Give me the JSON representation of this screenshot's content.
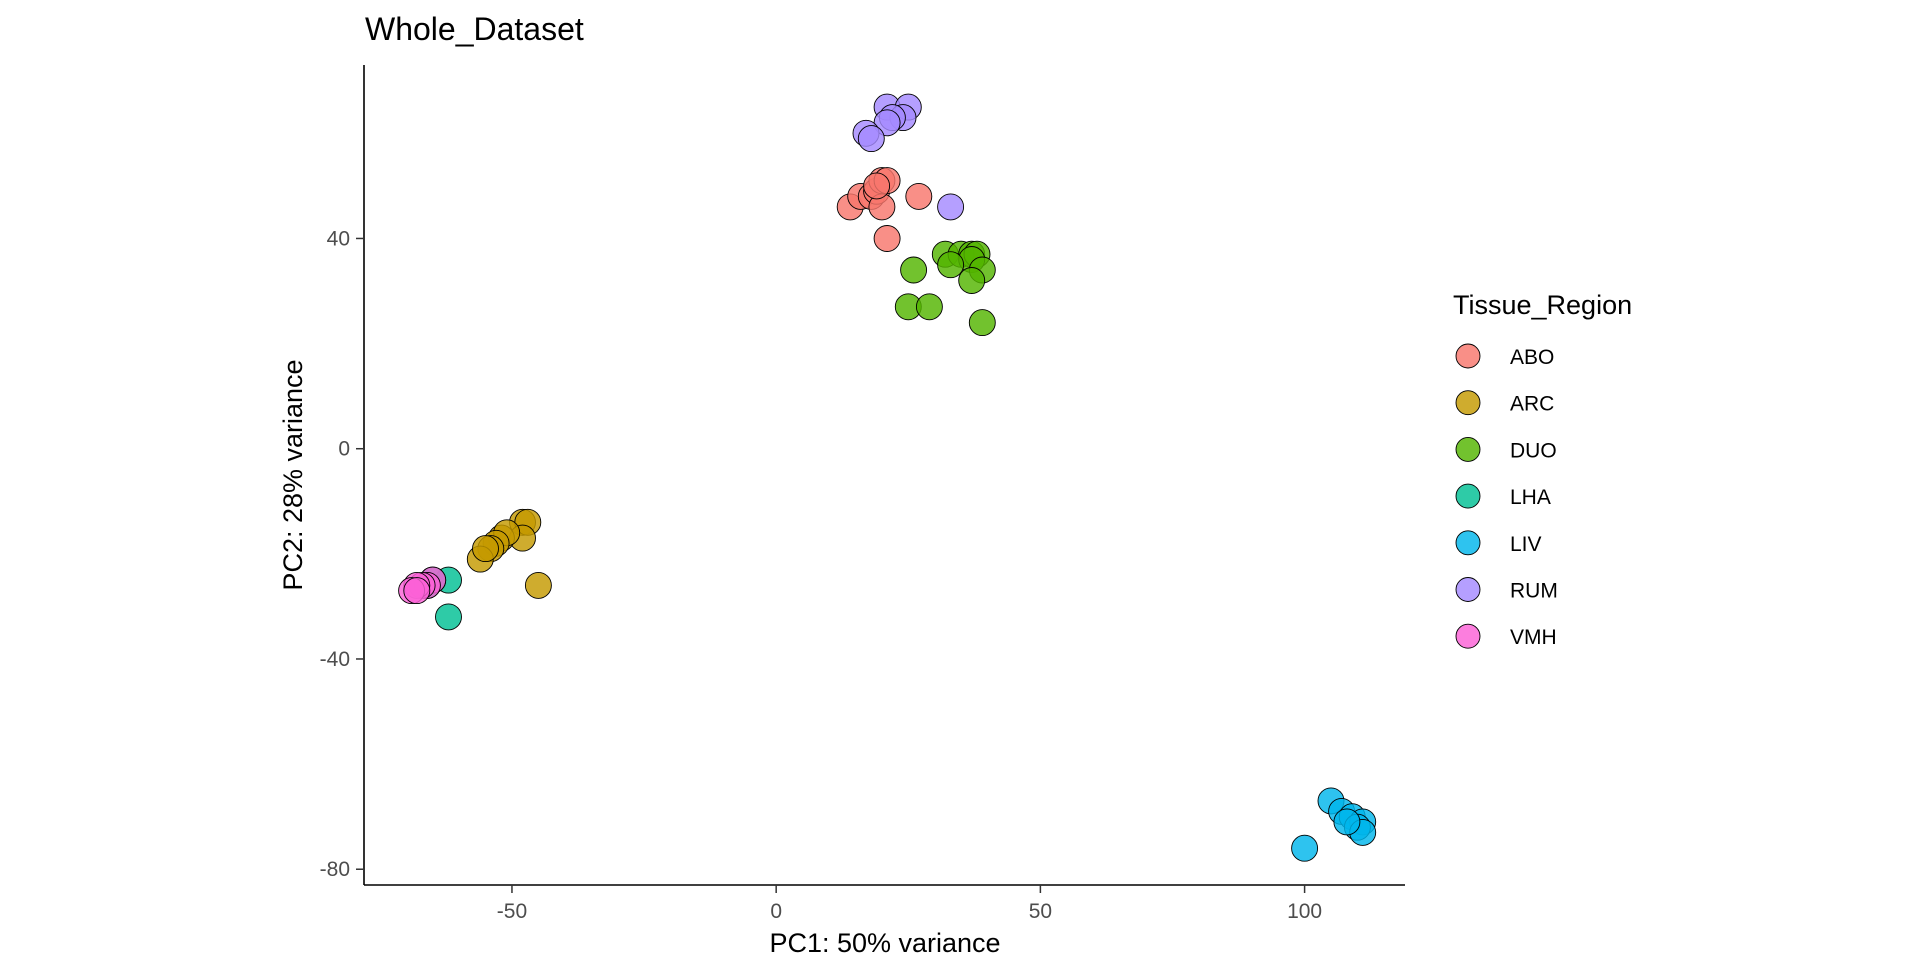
{
  "chart_data": {
    "type": "scatter",
    "title": "Whole_Dataset",
    "xlabel": "PC1: 50% variance",
    "ylabel": "PC2: 28% variance",
    "xlim": [
      -78,
      119
    ],
    "ylim": [
      -83,
      73
    ],
    "x_ticks": [
      -50,
      0,
      50,
      100
    ],
    "y_ticks": [
      -80,
      -40,
      0,
      40
    ],
    "x_tick_labels": [
      "-50",
      "0",
      "50",
      "100"
    ],
    "y_tick_labels": [
      "-80",
      "-40",
      "0",
      "40"
    ],
    "grid": false,
    "legend": {
      "title": "Tissue_Region",
      "position": "right"
    },
    "series": [
      {
        "name": "ABO",
        "color": "#F8766D",
        "points": [
          [
            14,
            46
          ],
          [
            16,
            48
          ],
          [
            18,
            48
          ],
          [
            19,
            49
          ],
          [
            20,
            51
          ],
          [
            21,
            51
          ],
          [
            20,
            46
          ],
          [
            21,
            40
          ],
          [
            27,
            48
          ],
          [
            19,
            50
          ]
        ]
      },
      {
        "name": "ARC",
        "color": "#C49A00",
        "points": [
          [
            -45,
            -26
          ],
          [
            -48,
            -14
          ],
          [
            -47,
            -14
          ],
          [
            -48,
            -17
          ],
          [
            -52,
            -17
          ],
          [
            -51,
            -16
          ],
          [
            -53,
            -18
          ],
          [
            -54,
            -19
          ],
          [
            -56,
            -21
          ],
          [
            -55,
            -19
          ]
        ]
      },
      {
        "name": "DUO",
        "color": "#53B400",
        "points": [
          [
            32,
            37
          ],
          [
            35,
            37
          ],
          [
            37,
            37
          ],
          [
            38,
            37
          ],
          [
            37,
            36
          ],
          [
            33,
            35
          ],
          [
            39,
            34
          ],
          [
            26,
            34
          ],
          [
            37,
            32
          ],
          [
            25,
            27
          ],
          [
            29,
            27
          ],
          [
            39,
            24
          ]
        ]
      },
      {
        "name": "LHA",
        "color": "#00C094",
        "points": [
          [
            -62,
            -32
          ],
          [
            -62,
            -25
          ],
          [
            -65,
            -25
          ],
          [
            -66,
            -26
          ]
        ]
      },
      {
        "name": "LIV",
        "color": "#00B6EB",
        "points": [
          [
            105,
            -67
          ],
          [
            107,
            -69
          ],
          [
            109,
            -70
          ],
          [
            111,
            -71
          ],
          [
            110,
            -72
          ],
          [
            111,
            -73
          ],
          [
            108,
            -71
          ],
          [
            100,
            -76
          ]
        ]
      },
      {
        "name": "RUM",
        "color": "#A58AFF",
        "points": [
          [
            21,
            65
          ],
          [
            25,
            65
          ],
          [
            24,
            63
          ],
          [
            22,
            63
          ],
          [
            21,
            62
          ],
          [
            17,
            60
          ],
          [
            18,
            59
          ],
          [
            33,
            46
          ]
        ]
      },
      {
        "name": "VMH",
        "color": "#FB61D7",
        "points": [
          [
            -65,
            -25
          ],
          [
            -66,
            -26
          ],
          [
            -67,
            -26
          ],
          [
            -68,
            -26
          ],
          [
            -69,
            -27
          ],
          [
            -68,
            -27
          ]
        ]
      }
    ]
  }
}
